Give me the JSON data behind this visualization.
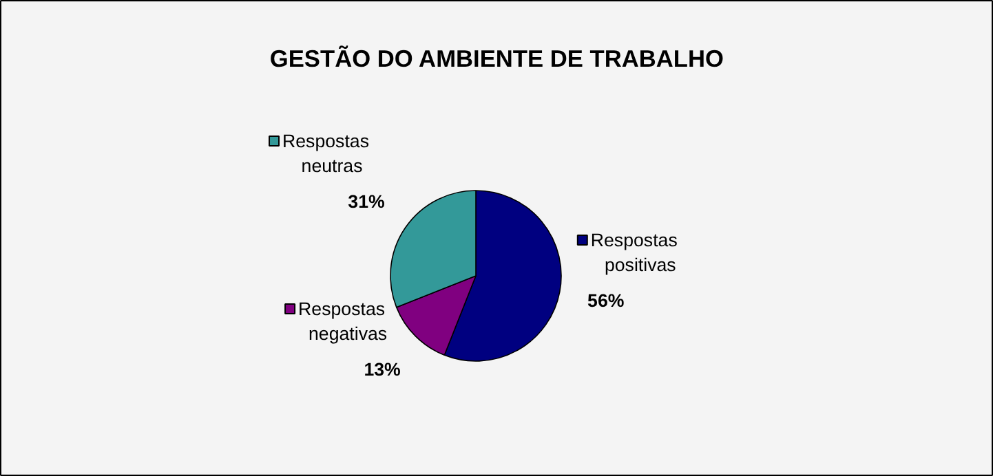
{
  "chart_data": {
    "type": "pie",
    "title": "GESTÃO DO AMBIENTE DE TRABALHO",
    "categories": [
      "Respostas positivas",
      "Respostas negativas",
      "Respostas neutras"
    ],
    "values": [
      56,
      13,
      31
    ],
    "value_labels": [
      "56%",
      "13%",
      "31%"
    ],
    "colors": [
      "#000080",
      "#800080",
      "#339999"
    ],
    "legend": "left"
  }
}
